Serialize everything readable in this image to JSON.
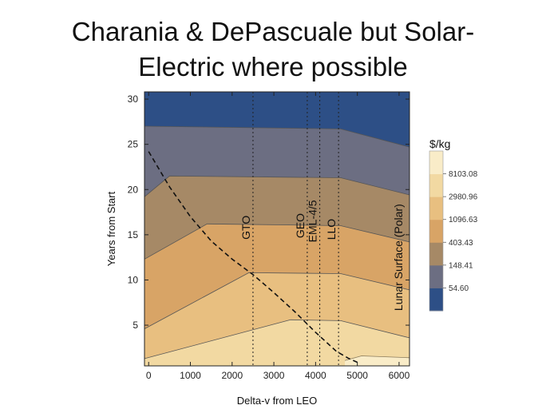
{
  "slide": {
    "title_line1": "Charania & DePascuale but Solar-",
    "title_line2": "Electric where possible"
  },
  "chart_data": {
    "type": "contour",
    "xlabel": "Delta-v from LEO",
    "ylabel": "Years from Start",
    "xlim": [
      -100,
      6250
    ],
    "ylim": [
      0.5,
      30.8
    ],
    "x_ticks": [
      0,
      1000,
      2000,
      3000,
      4000,
      5000,
      6000
    ],
    "y_ticks": [
      5,
      10,
      15,
      20,
      25,
      30
    ],
    "legend": {
      "title": "$/kg",
      "colors": [
        "#2d4f86",
        "#6c6e82",
        "#a68966",
        "#d8a466",
        "#e8bf80",
        "#f2d9a2",
        "#f9ecc8"
      ],
      "labels": [
        "54.60",
        "148.41",
        "403.43",
        "1096.63",
        "2980.96",
        "8103.08"
      ]
    },
    "bands": [
      {
        "color": "#2d4f86",
        "upper": [
          [
            -100,
            30.8
          ],
          [
            6250,
            30.8
          ]
        ],
        "lower": [
          [
            -100,
            27
          ],
          [
            4600,
            26.7
          ],
          [
            6250,
            24.7
          ]
        ]
      },
      {
        "color": "#6c6e82",
        "upper": [
          [
            -100,
            27
          ],
          [
            4600,
            26.7
          ],
          [
            6250,
            24.7
          ]
        ],
        "lower": [
          [
            -100,
            19.2
          ],
          [
            500,
            21.5
          ],
          [
            4600,
            21.3
          ],
          [
            6250,
            19.4
          ]
        ]
      },
      {
        "color": "#a68966",
        "upper": [
          [
            -100,
            19.2
          ],
          [
            500,
            21.5
          ],
          [
            4600,
            21.3
          ],
          [
            6250,
            19.4
          ]
        ],
        "lower": [
          [
            -100,
            12.3
          ],
          [
            1400,
            16.2
          ],
          [
            4600,
            16
          ],
          [
            6250,
            14.2
          ]
        ]
      },
      {
        "color": "#d8a466",
        "upper": [
          [
            -100,
            12.3
          ],
          [
            1400,
            16.2
          ],
          [
            4600,
            16
          ],
          [
            6250,
            14.2
          ]
        ],
        "lower": [
          [
            -100,
            4.6
          ],
          [
            2400,
            10.8
          ],
          [
            4600,
            10.7
          ],
          [
            6250,
            8.9
          ]
        ]
      },
      {
        "color": "#e8bf80",
        "upper": [
          [
            -100,
            4.6
          ],
          [
            2400,
            10.8
          ],
          [
            4600,
            10.7
          ],
          [
            6250,
            8.9
          ]
        ],
        "lower": [
          [
            -100,
            1.3
          ],
          [
            3400,
            5.6
          ],
          [
            4600,
            5.5
          ],
          [
            6250,
            3.6
          ]
        ]
      },
      {
        "color": "#f2d9a2",
        "upper": [
          [
            -100,
            1.3
          ],
          [
            3400,
            5.6
          ],
          [
            4600,
            5.5
          ],
          [
            6250,
            3.6
          ]
        ],
        "lower": [
          [
            -100,
            0.5
          ],
          [
            6250,
            0.5
          ]
        ]
      }
    ],
    "highlight_patch": {
      "color": "#f9ecc8",
      "points": [
        [
          4700,
          1.1
        ],
        [
          5100,
          1.6
        ],
        [
          6250,
          1.4
        ],
        [
          6250,
          0.5
        ],
        [
          4700,
          0.5
        ]
      ]
    },
    "dashed_curve": [
      [
        0,
        24.2
      ],
      [
        500,
        20.3
      ],
      [
        1000,
        17
      ],
      [
        1500,
        14.3
      ],
      [
        2000,
        12.3
      ],
      [
        2500,
        10.6
      ],
      [
        3000,
        8.6
      ],
      [
        3500,
        6.5
      ],
      [
        4000,
        4.2
      ],
      [
        4500,
        2.1
      ],
      [
        4800,
        1.3
      ],
      [
        5000,
        0.9
      ]
    ],
    "vertical_lines": [
      {
        "x": 2500,
        "label": "GTO",
        "label_y": 15.8
      },
      {
        "x": 3800,
        "label": "GEO",
        "label_y": 16
      },
      {
        "x": 4100,
        "label": "EML-4/5",
        "label_y": 16.5
      },
      {
        "x": 4550,
        "label": "LLO",
        "label_y": 15.6
      }
    ],
    "side_label": {
      "text": "Lunar Surface (Polar)",
      "label_y": 12.5
    },
    "grid": false
  }
}
